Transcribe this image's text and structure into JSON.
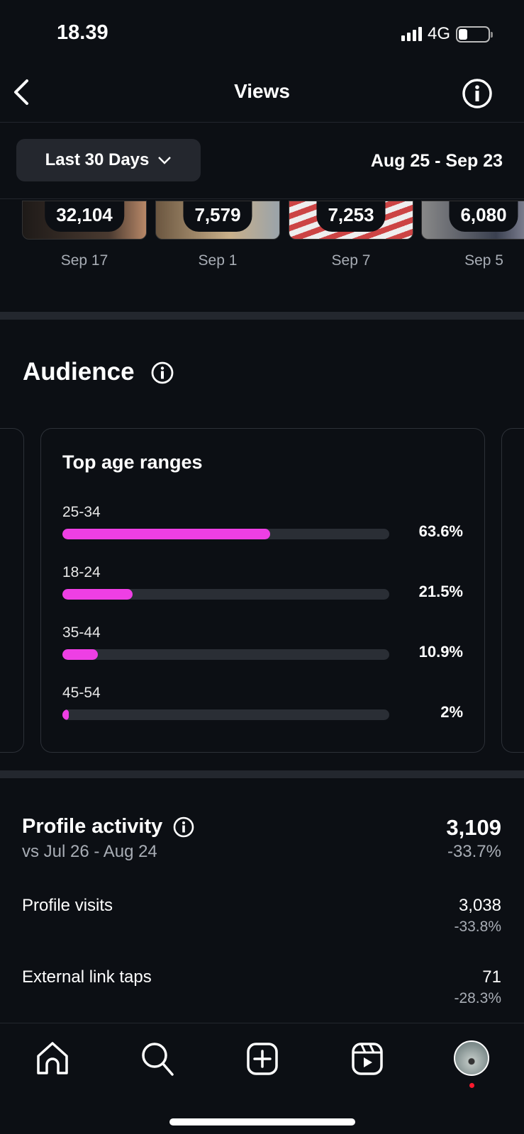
{
  "status_bar": {
    "time": "18.39",
    "network": "4G",
    "battery_level": 0.25
  },
  "header": {
    "title": "Views",
    "back_icon": "chevron-left-icon",
    "info_icon": "info-icon"
  },
  "filter": {
    "period_label": "Last 30 Days",
    "date_range": "Aug 25 - Sep 23"
  },
  "top_content": [
    {
      "views": "32,104",
      "date": "Sep 17"
    },
    {
      "views": "7,579",
      "date": "Sep 1"
    },
    {
      "views": "7,253",
      "date": "Sep 7"
    },
    {
      "views": "6,080",
      "date": "Sep 5"
    }
  ],
  "audience": {
    "title": "Audience",
    "card_title": "Top age ranges",
    "accent_color": "#ee3fe4",
    "ranges": [
      {
        "label": "25-34",
        "pct_text": "63.6%",
        "value": 63.6
      },
      {
        "label": "18-24",
        "pct_text": "21.5%",
        "value": 21.5
      },
      {
        "label": "35-44",
        "pct_text": "10.9%",
        "value": 10.9
      },
      {
        "label": "45-54",
        "pct_text": "2%",
        "value": 2
      }
    ]
  },
  "profile_activity": {
    "title": "Profile activity",
    "comparison": "vs Jul 26 - Aug 24",
    "total": "3,109",
    "total_change": "-33.7%",
    "rows": [
      {
        "label": "Profile visits",
        "value": "3,038",
        "change": "-33.8%"
      },
      {
        "label": "External link taps",
        "value": "71",
        "change": "-28.3%"
      }
    ]
  },
  "bottom_nav": [
    "home-icon",
    "search-icon",
    "create-icon",
    "reels-icon",
    "profile-avatar"
  ]
}
